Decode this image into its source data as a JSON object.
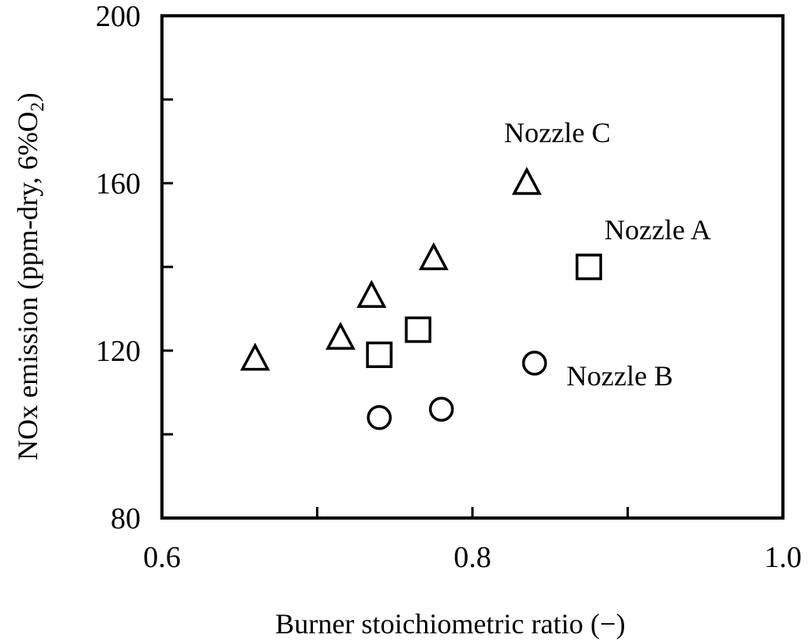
{
  "chart_data": {
    "type": "scatter",
    "xlabel": "Burner stoichiometric ratio (−)",
    "ylabel": "NOx emission (ppm-dry, 6%O",
    "ylabel_subscript": "2",
    "ylabel_suffix": ")",
    "xlim": [
      0.6,
      1.0
    ],
    "ylim": [
      80,
      200
    ],
    "x_ticks": [
      0.6,
      0.8,
      1.0
    ],
    "x_tick_labels": [
      "0.6",
      "0.8",
      "1.0"
    ],
    "x_minor_ticks": [
      0.7,
      0.9
    ],
    "y_ticks": [
      80,
      120,
      160,
      200
    ],
    "y_tick_labels": [
      "80",
      "120",
      "160",
      "200"
    ],
    "y_minor_ticks": [
      100,
      140,
      180
    ],
    "grid": false,
    "series": [
      {
        "name": "Nozzle A",
        "marker": "square",
        "points": [
          {
            "x": 0.74,
            "y": 119
          },
          {
            "x": 0.765,
            "y": 125
          },
          {
            "x": 0.875,
            "y": 140
          }
        ]
      },
      {
        "name": "Nozzle B",
        "marker": "circle",
        "points": [
          {
            "x": 0.74,
            "y": 104
          },
          {
            "x": 0.78,
            "y": 106
          },
          {
            "x": 0.84,
            "y": 117
          }
        ]
      },
      {
        "name": "Nozzle C",
        "marker": "triangle",
        "points": [
          {
            "x": 0.66,
            "y": 118
          },
          {
            "x": 0.715,
            "y": 123
          },
          {
            "x": 0.735,
            "y": 133
          },
          {
            "x": 0.775,
            "y": 142
          },
          {
            "x": 0.835,
            "y": 160
          }
        ]
      }
    ]
  }
}
